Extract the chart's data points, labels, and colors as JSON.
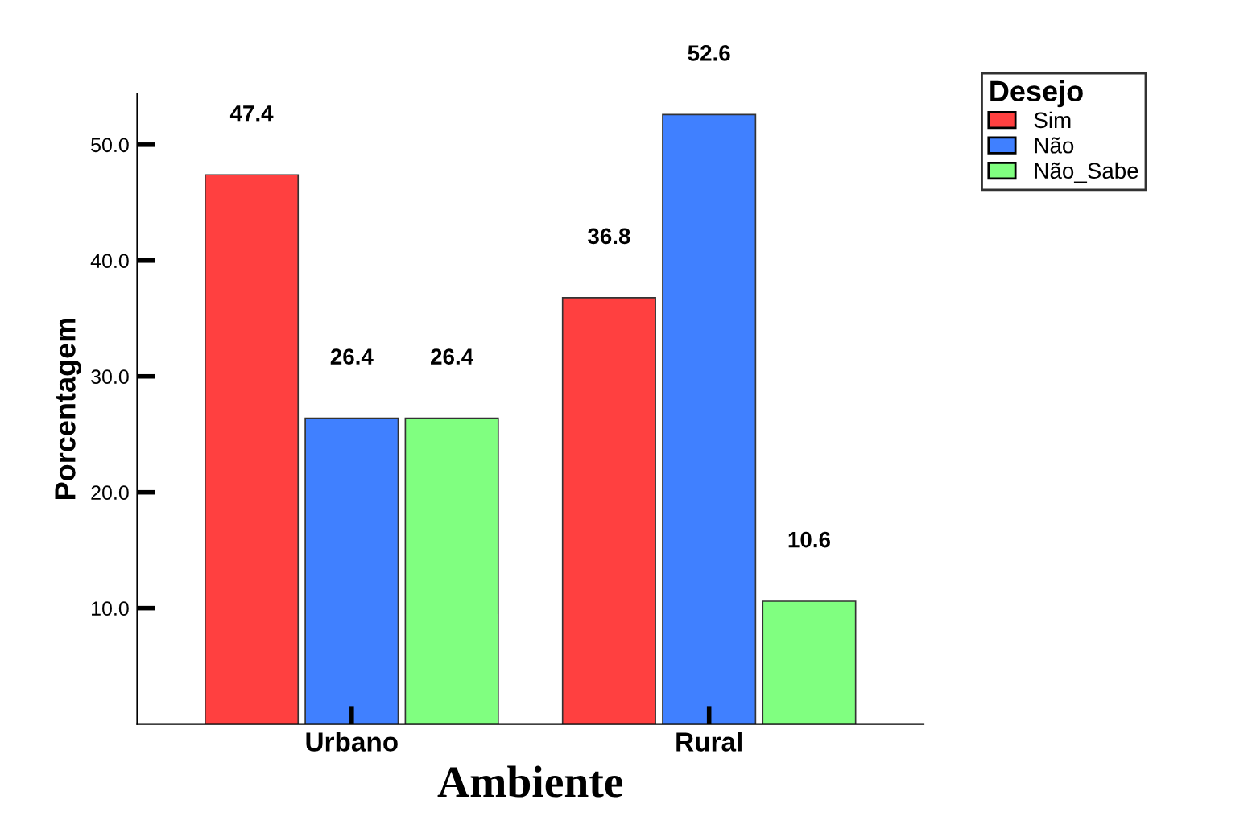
{
  "chart_data": {
    "type": "bar",
    "categories": [
      "Urbano",
      "Rural"
    ],
    "xlabel": "Ambiente",
    "ylabel": "Porcentagem",
    "legend_title": "Desejo",
    "series": [
      {
        "name": "Sim",
        "color": "#ff4040",
        "values": [
          47.4,
          36.8
        ]
      },
      {
        "name": "Não",
        "color": "#4080ff",
        "values": [
          26.4,
          52.6
        ]
      },
      {
        "name": "Não_Sabe",
        "color": "#80ff80",
        "values": [
          26.4,
          10.6
        ]
      }
    ],
    "ylim": [
      0,
      54.4
    ],
    "yticks": [
      {
        "value": 10,
        "label": "10.0"
      },
      {
        "value": 20,
        "label": "20.0"
      },
      {
        "value": 30,
        "label": "30.0"
      },
      {
        "value": 40,
        "label": "40.0"
      },
      {
        "value": 50,
        "label": "50.0"
      }
    ],
    "data_labels": true,
    "grid": false,
    "legend": "top right"
  }
}
